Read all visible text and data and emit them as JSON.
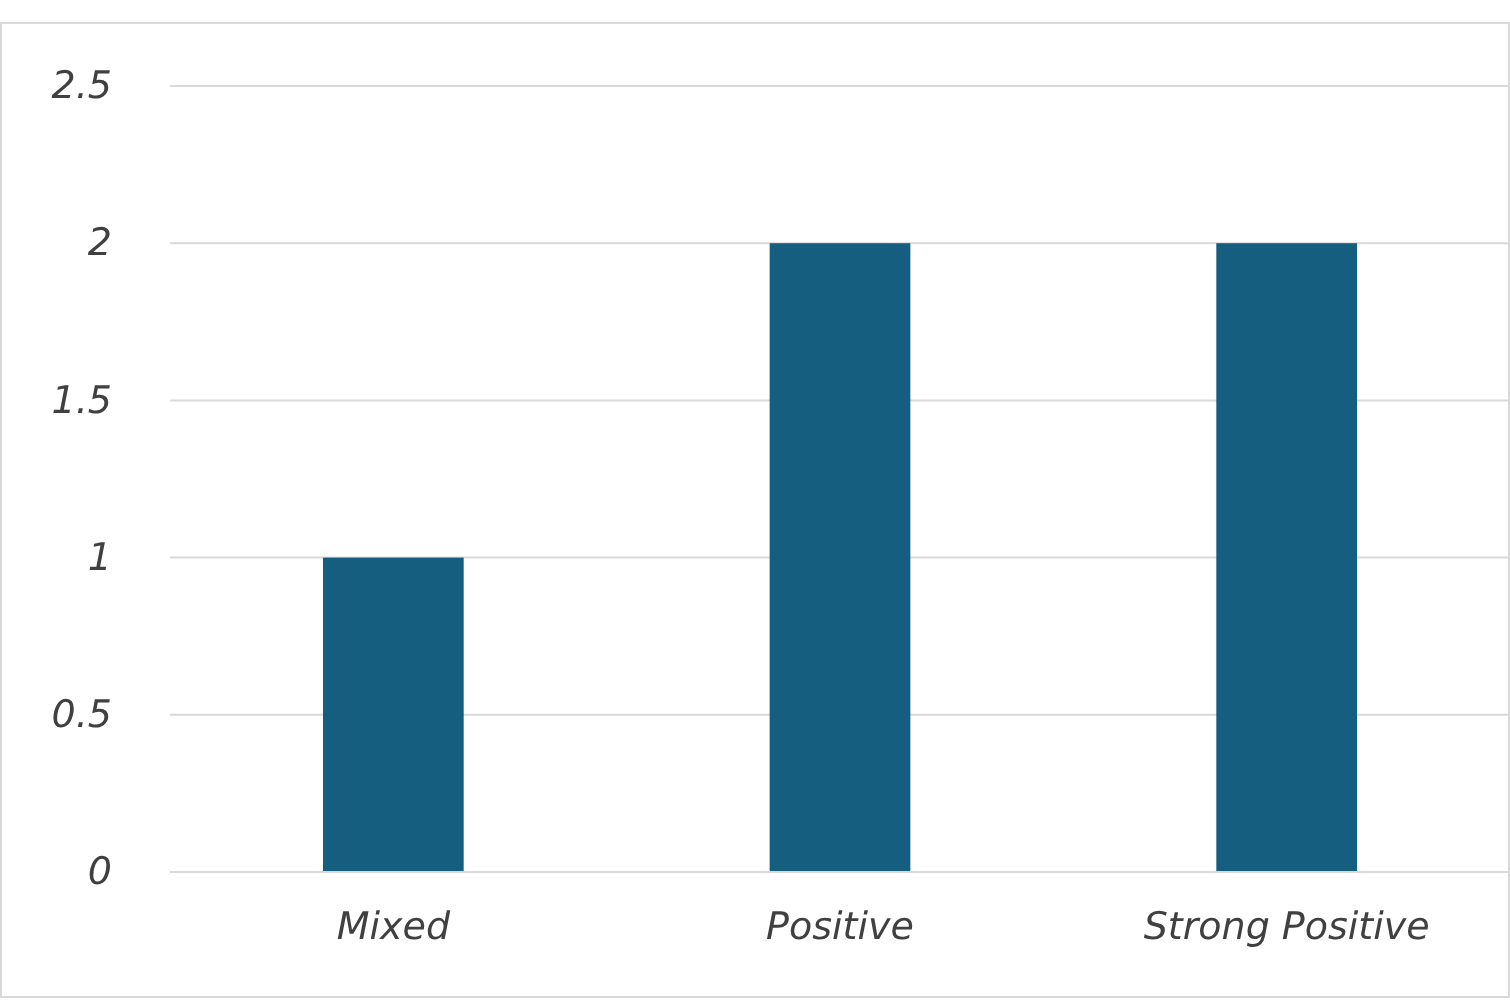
{
  "chart_data": {
    "type": "bar",
    "categories": [
      "Mixed",
      "Positive",
      "Strong Positive"
    ],
    "values": [
      1,
      2,
      2
    ],
    "color": "#165e7f",
    "ylim": [
      0,
      2.5
    ],
    "yticks": [
      0,
      0.5,
      1,
      1.5,
      2,
      2.5
    ],
    "grid": "y"
  }
}
